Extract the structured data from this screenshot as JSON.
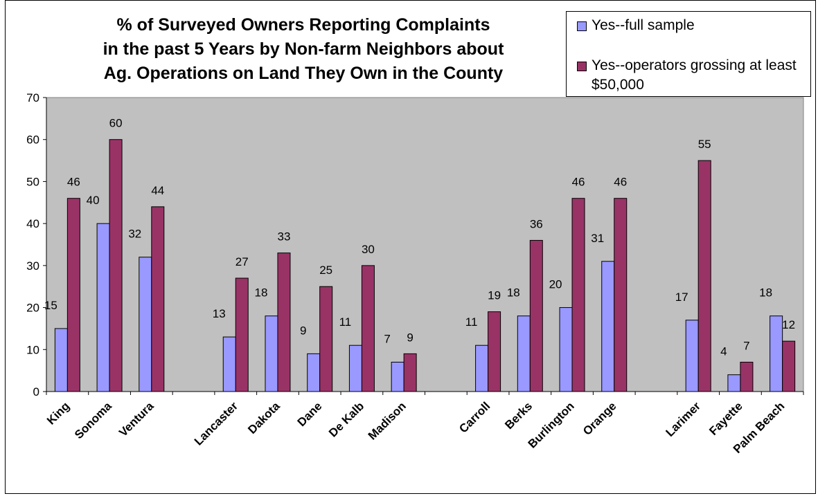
{
  "chart_data": {
    "type": "bar",
    "title": [
      "% of Surveyed Owners Reporting Complaints",
      "in the past 5 Years by Non-farm Neighbors about",
      "Ag. Operations on Land They Own in the County"
    ],
    "ylim": [
      0,
      70
    ],
    "yticks": [
      0,
      10,
      20,
      30,
      40,
      50,
      60,
      70
    ],
    "grid": false,
    "legend_position": "top-right",
    "plot_background": "#c0c0c0",
    "categories": [
      "King",
      "Sonoma",
      "Ventura",
      "",
      "Lancaster",
      "Dakota",
      "Dane",
      "De Kalb",
      "Madison",
      "",
      "Carroll",
      "Berks",
      "Burlington",
      "Orange",
      "",
      "Larimer",
      "Fayette",
      "Palm Beach"
    ],
    "series": [
      {
        "name": "Yes--full sample",
        "color": "#9999ff",
        "values": [
          15,
          40,
          32,
          null,
          13,
          18,
          9,
          11,
          7,
          null,
          11,
          18,
          20,
          31,
          null,
          17,
          4,
          18
        ],
        "labels": [
          "15",
          "40",
          "32",
          null,
          "13",
          "18",
          "9",
          "11",
          "7",
          null,
          "11",
          "18",
          "20",
          "31",
          null,
          "17",
          "4",
          "18"
        ]
      },
      {
        "name": "Yes--operators grossing at least $50,000",
        "color": "#993366",
        "values": [
          46,
          60,
          44,
          null,
          27,
          33,
          25,
          30,
          9,
          null,
          19,
          36,
          46,
          46,
          null,
          55,
          7,
          12
        ],
        "labels": [
          "46",
          "60",
          "44",
          null,
          "27",
          "33",
          "25",
          "30",
          "9",
          null,
          "19",
          "36",
          "46",
          "46",
          null,
          "55",
          "7",
          "12"
        ]
      }
    ]
  }
}
